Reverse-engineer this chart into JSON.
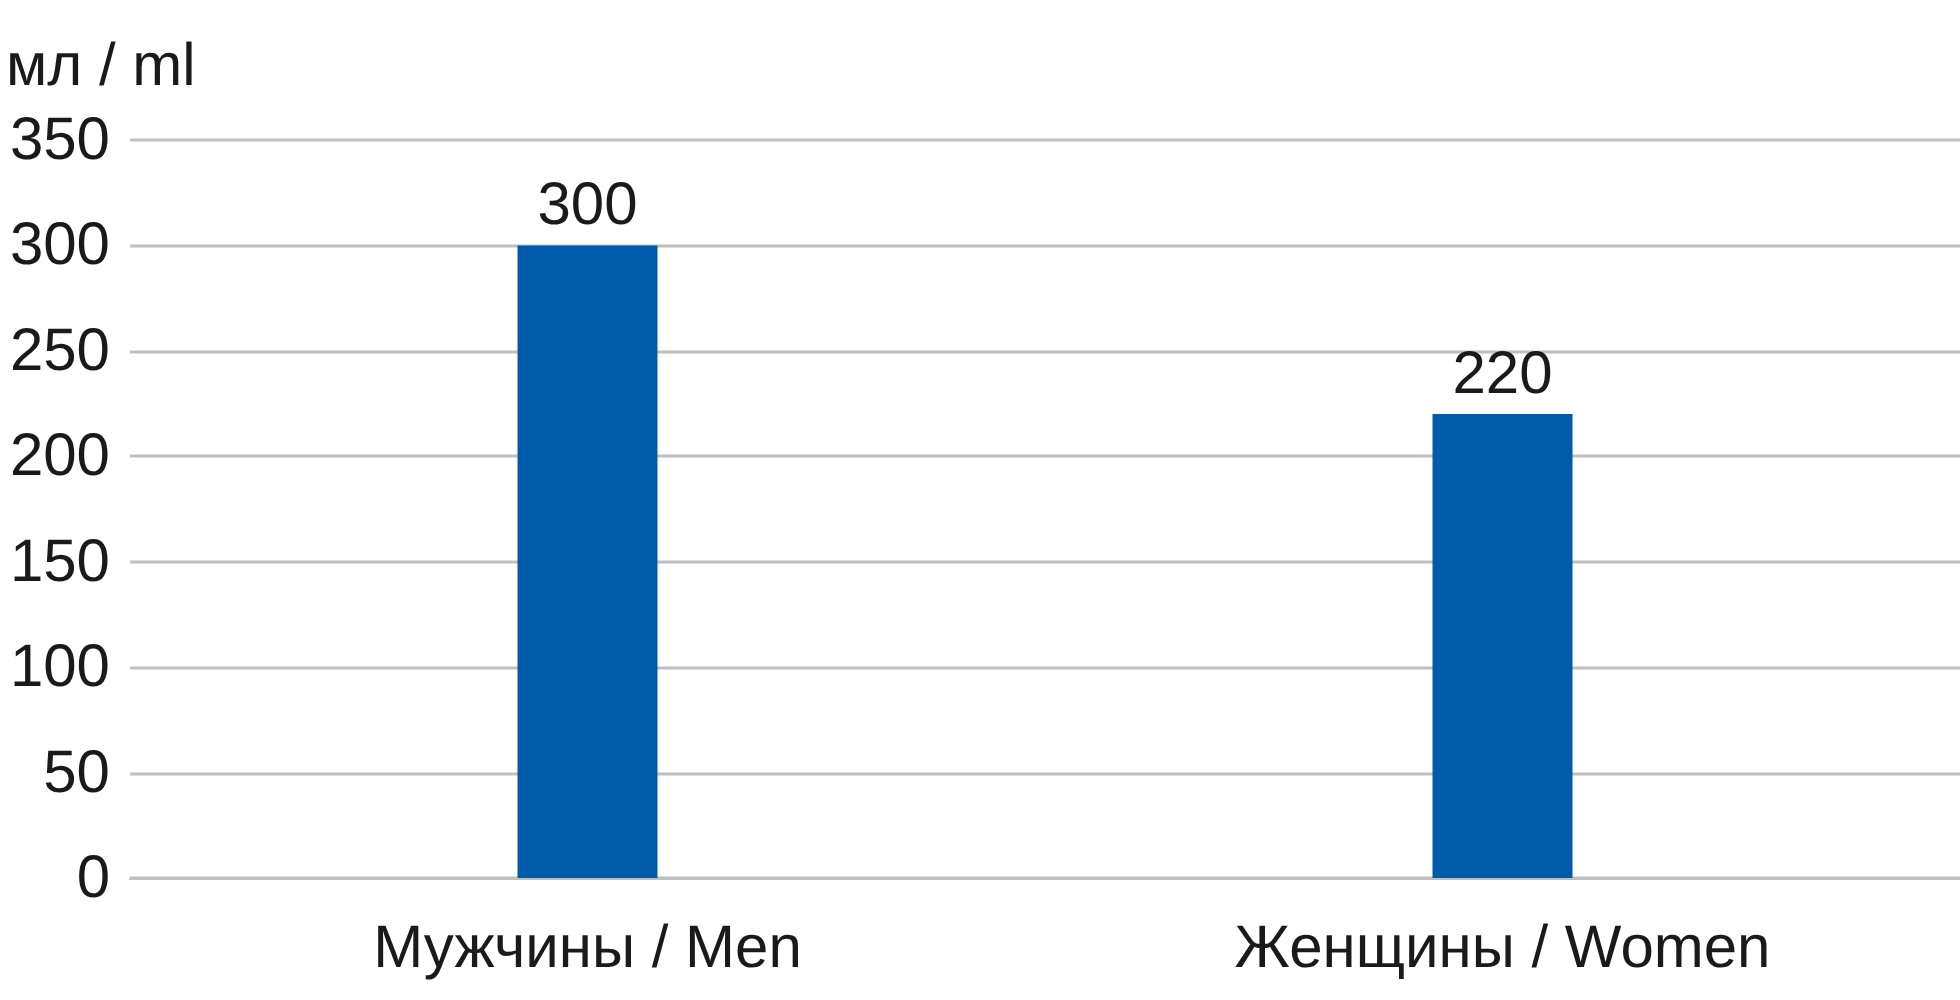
{
  "chart_data": {
    "type": "bar",
    "ylabel": "мл / ml",
    "categories": [
      "Мужчины / Men",
      "Женщины / Women"
    ],
    "values": [
      300,
      220
    ],
    "color": "#005bab",
    "ylim": [
      0,
      350
    ],
    "yticks": [
      0,
      50,
      100,
      150,
      200,
      250,
      300,
      350
    ],
    "grid": "y",
    "data_labels": true
  }
}
